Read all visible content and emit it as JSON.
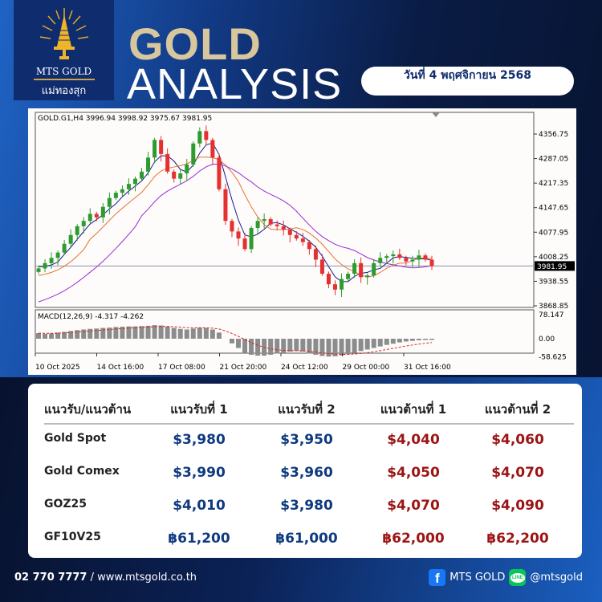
{
  "brand": {
    "name_en": "MTS GOLD",
    "name_th": "แม่ทองสุก"
  },
  "header": {
    "title_1": "GOLD",
    "title_2": "ANALYSIS",
    "date": "วันที่ 4 พฤศจิกายน 2568"
  },
  "colors": {
    "gold_title": "#d8c79c",
    "support": "#0f3a80",
    "resistance": "#9c1414",
    "bull": "#2e9b2e",
    "bear": "#e53030"
  },
  "chart_data": {
    "type": "candlestick",
    "title": "GOLD.G1,H4  3996.94 3998.92 3975.67 3981.95",
    "symbol": "GOLD.G1,H4",
    "ohlc_last": {
      "open": 3996.94,
      "high": 3998.92,
      "low": 3975.67,
      "close": 3981.95
    },
    "last_price_label": "3981.95",
    "y_ticks": [
      "4356.75",
      "4287.05",
      "4217.35",
      "4147.65",
      "4077.95",
      "4008.25",
      "3938.55",
      "3868.85"
    ],
    "ylim": [
      3868.85,
      4380
    ],
    "x_ticks": [
      "10 Oct 2025",
      "14 Oct 16:00",
      "17 Oct 08:00",
      "21 Oct 20:00",
      "24 Oct 12:00",
      "29 Oct 00:00",
      "31 Oct 16:00"
    ],
    "closes": [
      3975,
      3990,
      4005,
      4020,
      4045,
      4070,
      4095,
      4110,
      4130,
      4120,
      4150,
      4175,
      4190,
      4200,
      4215,
      4230,
      4250,
      4290,
      4340,
      4300,
      4250,
      4230,
      4245,
      4270,
      4330,
      4365,
      4340,
      4290,
      4200,
      4110,
      4080,
      4060,
      4030,
      4090,
      4110,
      4115,
      4100,
      4095,
      4085,
      4070,
      4060,
      4050,
      4030,
      4000,
      3960,
      3930,
      3915,
      3945,
      3960,
      3990,
      3950,
      3955,
      3990,
      4005,
      4010,
      4015,
      4005,
      3995,
      4000,
      4012,
      4000,
      3982
    ],
    "macd": {
      "label": "MACD(12,26,9) -4.317 -4.262",
      "y_ticks": [
        "78.147",
        "0.00",
        "-58.625"
      ],
      "histogram": [
        18,
        16,
        17,
        20,
        22,
        25,
        28,
        30,
        32,
        33,
        35,
        36,
        38,
        39,
        40,
        40,
        41,
        42,
        44,
        43,
        40,
        35,
        32,
        30,
        33,
        36,
        35,
        30,
        20,
        0,
        -15,
        -30,
        -45,
        -52,
        -55,
        -55,
        -52,
        -48,
        -45,
        -42,
        -40,
        -42,
        -48,
        -52,
        -56,
        -58,
        -57,
        -54,
        -50,
        -46,
        -40,
        -35,
        -30,
        -25,
        -20,
        -16,
        -12,
        -9,
        -7,
        -5,
        -4,
        -4
      ]
    }
  },
  "table": {
    "headers": [
      "แนวรับ/แนวต้าน",
      "แนวรับที่ 1",
      "แนวรับที่ 2",
      "แนวต้านที่ 1",
      "แนวต้านที่ 2"
    ],
    "rows": [
      {
        "name": "Gold Spot",
        "s1": "$3,980",
        "s2": "$3,950",
        "r1": "$4,040",
        "r2": "$4,060"
      },
      {
        "name": "Gold Comex",
        "s1": "$3,990",
        "s2": "$3,960",
        "r1": "$4,050",
        "r2": "$4,070"
      },
      {
        "name": "GOZ25",
        "s1": "$4,010",
        "s2": "$3,980",
        "r1": "$4,070",
        "r2": "$4,090"
      },
      {
        "name": "GF10V25",
        "s1": "฿61,200",
        "s2": "฿61,000",
        "r1": "฿62,000",
        "r2": "฿62,200"
      }
    ]
  },
  "footer": {
    "phone": "02 770 7777",
    "website": " / www.mtsgold.co.th",
    "facebook": "MTS GOLD",
    "line": "@mtsgold",
    "line_icon_text": "LINE"
  }
}
